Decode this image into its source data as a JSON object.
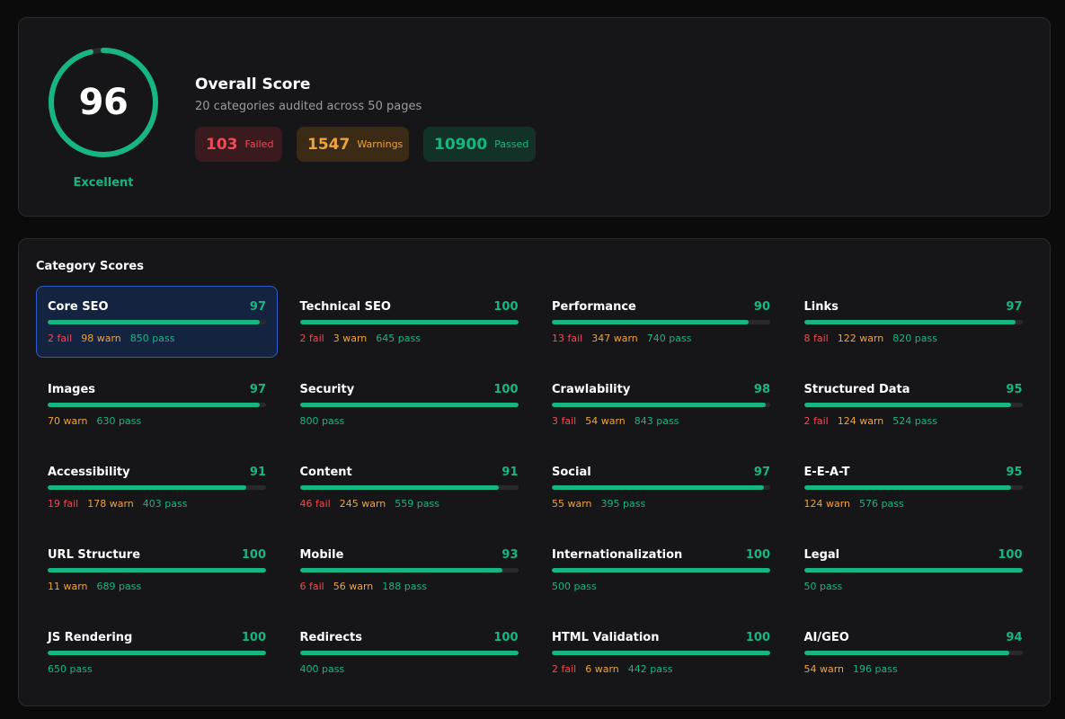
{
  "overview": {
    "score": "96",
    "score_fraction": 0.96,
    "score_label": "Excellent",
    "title": "Overall Score",
    "subtitle": "20 categories audited across 50 pages",
    "failed": {
      "count": "103",
      "label": "Failed"
    },
    "warnings": {
      "count": "1547",
      "label": "Warnings"
    },
    "passed": {
      "count": "10900",
      "label": "Passed"
    }
  },
  "colors": {
    "pass": "#16b582",
    "fail": "#ee4b55",
    "warn": "#f0a33a",
    "track": "#2a2a2e"
  },
  "category_heading": "Category Scores",
  "categories": [
    {
      "name": "Core SEO",
      "score": "97",
      "fail": "2 fail",
      "warn": "98 warn",
      "pass": "850 pass",
      "active": true
    },
    {
      "name": "Technical SEO",
      "score": "100",
      "fail": "2 fail",
      "warn": "3 warn",
      "pass": "645 pass"
    },
    {
      "name": "Performance",
      "score": "90",
      "fail": "13 fail",
      "warn": "347 warn",
      "pass": "740 pass"
    },
    {
      "name": "Links",
      "score": "97",
      "fail": "8 fail",
      "warn": "122 warn",
      "pass": "820 pass"
    },
    {
      "name": "Images",
      "score": "97",
      "fail": "",
      "warn": "70 warn",
      "pass": "630 pass"
    },
    {
      "name": "Security",
      "score": "100",
      "fail": "",
      "warn": "",
      "pass": "800 pass"
    },
    {
      "name": "Crawlability",
      "score": "98",
      "fail": "3 fail",
      "warn": "54 warn",
      "pass": "843 pass"
    },
    {
      "name": "Structured Data",
      "score": "95",
      "fail": "2 fail",
      "warn": "124 warn",
      "pass": "524 pass"
    },
    {
      "name": "Accessibility",
      "score": "91",
      "fail": "19 fail",
      "warn": "178 warn",
      "pass": "403 pass"
    },
    {
      "name": "Content",
      "score": "91",
      "fail": "46 fail",
      "warn": "245 warn",
      "pass": "559 pass"
    },
    {
      "name": "Social",
      "score": "97",
      "fail": "",
      "warn": "55 warn",
      "pass": "395 pass"
    },
    {
      "name": "E-E-A-T",
      "score": "95",
      "fail": "",
      "warn": "124 warn",
      "pass": "576 pass"
    },
    {
      "name": "URL Structure",
      "score": "100",
      "fail": "",
      "warn": "11 warn",
      "pass": "689 pass"
    },
    {
      "name": "Mobile",
      "score": "93",
      "fail": "6 fail",
      "warn": "56 warn",
      "pass": "188 pass"
    },
    {
      "name": "Internationalization",
      "score": "100",
      "fail": "",
      "warn": "",
      "pass": "500 pass"
    },
    {
      "name": "Legal",
      "score": "100",
      "fail": "",
      "warn": "",
      "pass": "50 pass"
    },
    {
      "name": "JS Rendering",
      "score": "100",
      "fail": "",
      "warn": "",
      "pass": "650 pass"
    },
    {
      "name": "Redirects",
      "score": "100",
      "fail": "",
      "warn": "",
      "pass": "400 pass"
    },
    {
      "name": "HTML Validation",
      "score": "100",
      "fail": "2 fail",
      "warn": "6 warn",
      "pass": "442 pass"
    },
    {
      "name": "AI/GEO",
      "score": "94",
      "fail": "",
      "warn": "54 warn",
      "pass": "196 pass"
    }
  ]
}
